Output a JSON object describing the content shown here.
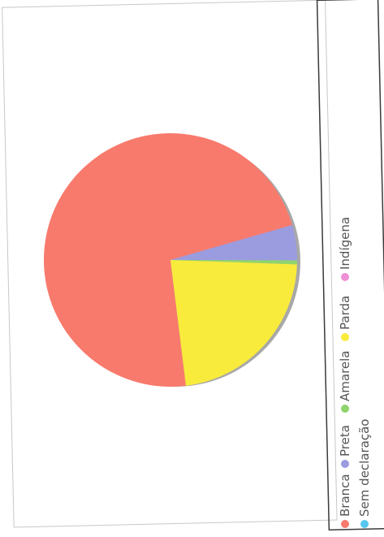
{
  "chart_data": {
    "type": "pie",
    "title": "",
    "series": [
      {
        "name": "Branca",
        "value": 72.5,
        "color": "#f87a6c"
      },
      {
        "name": "Preta",
        "value": 4.5,
        "color": "#9b9be0"
      },
      {
        "name": "Amarela",
        "value": 0.5,
        "color": "#8fd46d"
      },
      {
        "name": "Parda",
        "value": 22.5,
        "color": "#f8eb3c"
      },
      {
        "name": "Indígena",
        "value": 0,
        "color": "#ef8fd4"
      },
      {
        "name": "Sem declaração",
        "value": 0,
        "color": "#56c6ee"
      }
    ],
    "legend": {
      "placement": "bottom",
      "rows": [
        [
          "Branca",
          "Preta",
          "Amarela",
          "Parda",
          "Indígena"
        ],
        [
          "Sem declaração"
        ]
      ]
    }
  }
}
